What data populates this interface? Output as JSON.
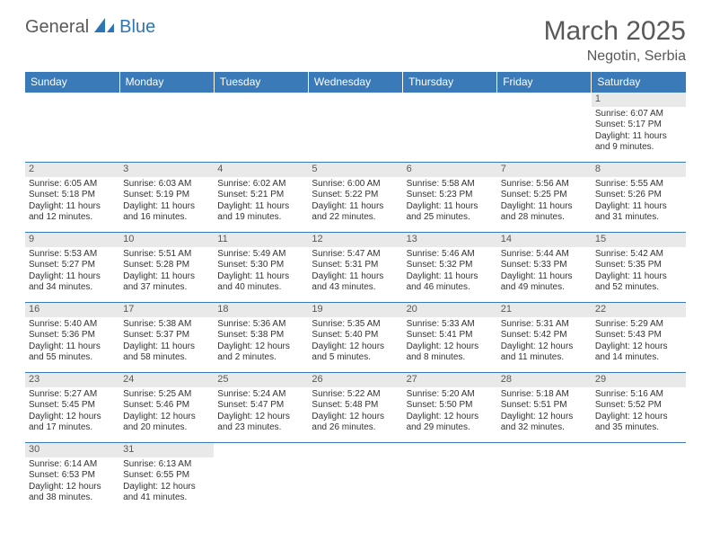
{
  "logo": {
    "general": "General",
    "blue": "Blue"
  },
  "title": "March 2025",
  "location": "Negotin, Serbia",
  "headers": [
    "Sunday",
    "Monday",
    "Tuesday",
    "Wednesday",
    "Thursday",
    "Friday",
    "Saturday"
  ],
  "colors": {
    "header_bg": "#3a7ab8",
    "header_text": "#ffffff",
    "border": "#3a7ab8",
    "daynum_bg": "#e9e9e9",
    "text": "#333333",
    "title": "#595959",
    "logo_blue": "#2e75b6"
  },
  "typography": {
    "title_fontsize": 30,
    "location_fontsize": 16,
    "header_fontsize": 12,
    "cell_fontsize": 10
  },
  "weeks": [
    [
      null,
      null,
      null,
      null,
      null,
      null,
      {
        "n": "1",
        "sr": "Sunrise: 6:07 AM",
        "ss": "Sunset: 5:17 PM",
        "d1": "Daylight: 11 hours",
        "d2": "and 9 minutes."
      }
    ],
    [
      {
        "n": "2",
        "sr": "Sunrise: 6:05 AM",
        "ss": "Sunset: 5:18 PM",
        "d1": "Daylight: 11 hours",
        "d2": "and 12 minutes."
      },
      {
        "n": "3",
        "sr": "Sunrise: 6:03 AM",
        "ss": "Sunset: 5:19 PM",
        "d1": "Daylight: 11 hours",
        "d2": "and 16 minutes."
      },
      {
        "n": "4",
        "sr": "Sunrise: 6:02 AM",
        "ss": "Sunset: 5:21 PM",
        "d1": "Daylight: 11 hours",
        "d2": "and 19 minutes."
      },
      {
        "n": "5",
        "sr": "Sunrise: 6:00 AM",
        "ss": "Sunset: 5:22 PM",
        "d1": "Daylight: 11 hours",
        "d2": "and 22 minutes."
      },
      {
        "n": "6",
        "sr": "Sunrise: 5:58 AM",
        "ss": "Sunset: 5:23 PM",
        "d1": "Daylight: 11 hours",
        "d2": "and 25 minutes."
      },
      {
        "n": "7",
        "sr": "Sunrise: 5:56 AM",
        "ss": "Sunset: 5:25 PM",
        "d1": "Daylight: 11 hours",
        "d2": "and 28 minutes."
      },
      {
        "n": "8",
        "sr": "Sunrise: 5:55 AM",
        "ss": "Sunset: 5:26 PM",
        "d1": "Daylight: 11 hours",
        "d2": "and 31 minutes."
      }
    ],
    [
      {
        "n": "9",
        "sr": "Sunrise: 5:53 AM",
        "ss": "Sunset: 5:27 PM",
        "d1": "Daylight: 11 hours",
        "d2": "and 34 minutes."
      },
      {
        "n": "10",
        "sr": "Sunrise: 5:51 AM",
        "ss": "Sunset: 5:28 PM",
        "d1": "Daylight: 11 hours",
        "d2": "and 37 minutes."
      },
      {
        "n": "11",
        "sr": "Sunrise: 5:49 AM",
        "ss": "Sunset: 5:30 PM",
        "d1": "Daylight: 11 hours",
        "d2": "and 40 minutes."
      },
      {
        "n": "12",
        "sr": "Sunrise: 5:47 AM",
        "ss": "Sunset: 5:31 PM",
        "d1": "Daylight: 11 hours",
        "d2": "and 43 minutes."
      },
      {
        "n": "13",
        "sr": "Sunrise: 5:46 AM",
        "ss": "Sunset: 5:32 PM",
        "d1": "Daylight: 11 hours",
        "d2": "and 46 minutes."
      },
      {
        "n": "14",
        "sr": "Sunrise: 5:44 AM",
        "ss": "Sunset: 5:33 PM",
        "d1": "Daylight: 11 hours",
        "d2": "and 49 minutes."
      },
      {
        "n": "15",
        "sr": "Sunrise: 5:42 AM",
        "ss": "Sunset: 5:35 PM",
        "d1": "Daylight: 11 hours",
        "d2": "and 52 minutes."
      }
    ],
    [
      {
        "n": "16",
        "sr": "Sunrise: 5:40 AM",
        "ss": "Sunset: 5:36 PM",
        "d1": "Daylight: 11 hours",
        "d2": "and 55 minutes."
      },
      {
        "n": "17",
        "sr": "Sunrise: 5:38 AM",
        "ss": "Sunset: 5:37 PM",
        "d1": "Daylight: 11 hours",
        "d2": "and 58 minutes."
      },
      {
        "n": "18",
        "sr": "Sunrise: 5:36 AM",
        "ss": "Sunset: 5:38 PM",
        "d1": "Daylight: 12 hours",
        "d2": "and 2 minutes."
      },
      {
        "n": "19",
        "sr": "Sunrise: 5:35 AM",
        "ss": "Sunset: 5:40 PM",
        "d1": "Daylight: 12 hours",
        "d2": "and 5 minutes."
      },
      {
        "n": "20",
        "sr": "Sunrise: 5:33 AM",
        "ss": "Sunset: 5:41 PM",
        "d1": "Daylight: 12 hours",
        "d2": "and 8 minutes."
      },
      {
        "n": "21",
        "sr": "Sunrise: 5:31 AM",
        "ss": "Sunset: 5:42 PM",
        "d1": "Daylight: 12 hours",
        "d2": "and 11 minutes."
      },
      {
        "n": "22",
        "sr": "Sunrise: 5:29 AM",
        "ss": "Sunset: 5:43 PM",
        "d1": "Daylight: 12 hours",
        "d2": "and 14 minutes."
      }
    ],
    [
      {
        "n": "23",
        "sr": "Sunrise: 5:27 AM",
        "ss": "Sunset: 5:45 PM",
        "d1": "Daylight: 12 hours",
        "d2": "and 17 minutes."
      },
      {
        "n": "24",
        "sr": "Sunrise: 5:25 AM",
        "ss": "Sunset: 5:46 PM",
        "d1": "Daylight: 12 hours",
        "d2": "and 20 minutes."
      },
      {
        "n": "25",
        "sr": "Sunrise: 5:24 AM",
        "ss": "Sunset: 5:47 PM",
        "d1": "Daylight: 12 hours",
        "d2": "and 23 minutes."
      },
      {
        "n": "26",
        "sr": "Sunrise: 5:22 AM",
        "ss": "Sunset: 5:48 PM",
        "d1": "Daylight: 12 hours",
        "d2": "and 26 minutes."
      },
      {
        "n": "27",
        "sr": "Sunrise: 5:20 AM",
        "ss": "Sunset: 5:50 PM",
        "d1": "Daylight: 12 hours",
        "d2": "and 29 minutes."
      },
      {
        "n": "28",
        "sr": "Sunrise: 5:18 AM",
        "ss": "Sunset: 5:51 PM",
        "d1": "Daylight: 12 hours",
        "d2": "and 32 minutes."
      },
      {
        "n": "29",
        "sr": "Sunrise: 5:16 AM",
        "ss": "Sunset: 5:52 PM",
        "d1": "Daylight: 12 hours",
        "d2": "and 35 minutes."
      }
    ],
    [
      {
        "n": "30",
        "sr": "Sunrise: 6:14 AM",
        "ss": "Sunset: 6:53 PM",
        "d1": "Daylight: 12 hours",
        "d2": "and 38 minutes."
      },
      {
        "n": "31",
        "sr": "Sunrise: 6:13 AM",
        "ss": "Sunset: 6:55 PM",
        "d1": "Daylight: 12 hours",
        "d2": "and 41 minutes."
      },
      null,
      null,
      null,
      null,
      null
    ]
  ]
}
